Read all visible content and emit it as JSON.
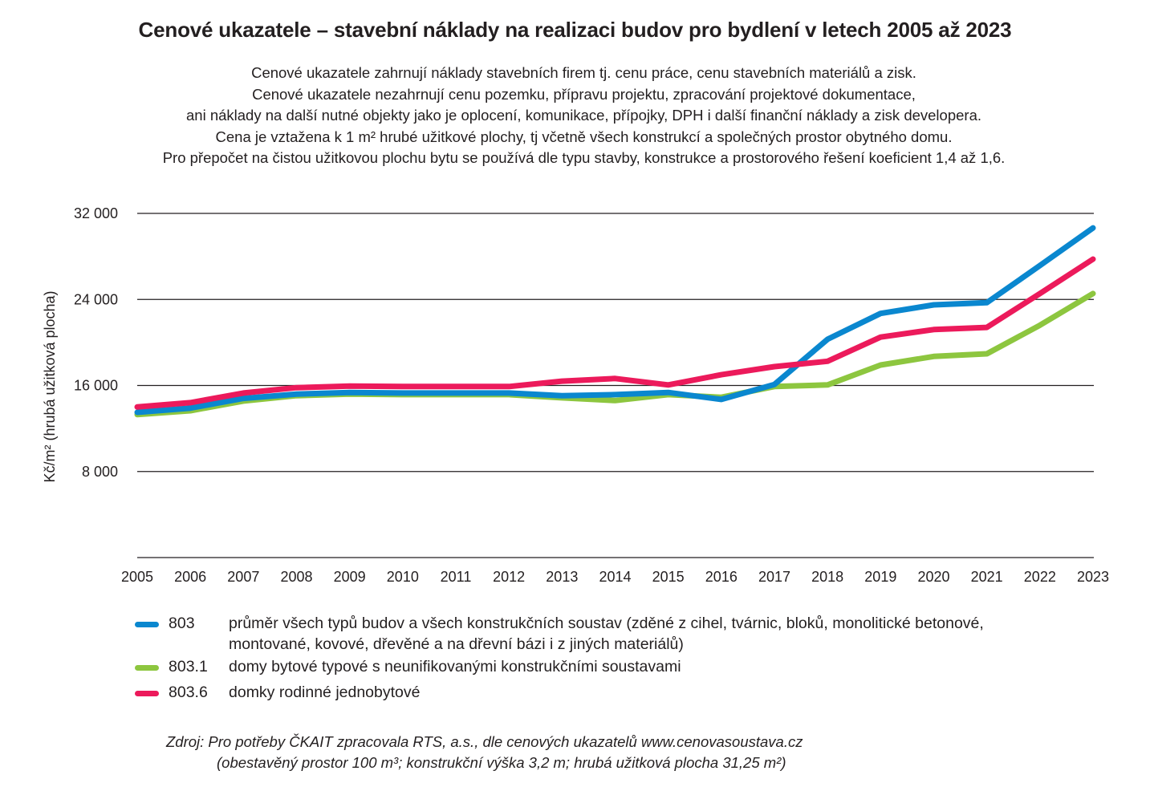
{
  "title": "Cenové ukazatele – stavební náklady na realizaci budov pro bydlení v letech 2005 až 2023",
  "subtitle_lines": [
    "Cenové ukazatele zahrnují náklady stavebních firem tj. cenu práce, cenu stavebních materiálů a zisk.",
    "Cenové ukazatele nezahrnují cenu pozemku, přípravu projektu, zpracování projektové dokumentace,",
    "ani náklady na další nutné objekty jako je oplocení, komunikace, přípojky, DPH i další finanční náklady a zisk developera.",
    "Cena je vztažena k 1 m² hrubé užitkové plochy, tj včetně všech konstrukcí a společných prostor obytného domu.",
    "Pro přepočet na čistou užitkovou plochu bytu se používá dle typu stavby, konstrukce a prostorového řešení koeficient 1,4 až 1,6."
  ],
  "source": {
    "line1": "Zdroj: Pro potřeby ČKAIT zpracovala RTS, a.s., dle cenových ukazatelů www.cenovasoustava.cz",
    "line2": "(obestavěný prostor 100 m³; konstrukční výška 3,2 m; hrubá užitková plocha 31,25 m²)"
  },
  "chart_data": {
    "type": "line",
    "title": "Cenové ukazatele – stavební náklady na realizaci budov pro bydlení v letech 2005 až 2023",
    "xlabel": "",
    "ylabel": "Kč/m² (hrubá užitková plocha)",
    "x": [
      "2005",
      "2006",
      "2007",
      "2008",
      "2009",
      "2010",
      "2011",
      "2012",
      "2013",
      "2014",
      "2015",
      "2016",
      "2017",
      "2018",
      "2019",
      "2020",
      "2021",
      "2022",
      "2023"
    ],
    "ylim": [
      0,
      32000
    ],
    "yticks": [
      8000,
      16000,
      24000,
      32000
    ],
    "ytick_labels": [
      "8 000",
      "16 000",
      "24 000",
      "32 000"
    ],
    "grid": "horizontal",
    "legend_position": "bottom",
    "series": [
      {
        "name": "803",
        "description_lines": [
          "průměr všech typů budov a všech konstrukčních soustav (zděné z cihel, tvárnic, bloků, monolitické betonové,",
          "montované, kovové, dřevěné a na dřevní bázi i z jiných materiálů)"
        ],
        "color": "#0a87cf",
        "values": [
          13500,
          13900,
          14800,
          15200,
          15350,
          15300,
          15300,
          15300,
          15050,
          15150,
          15350,
          14700,
          16100,
          20300,
          22700,
          23500,
          23700,
          27150,
          30650
        ]
      },
      {
        "name": "803.1",
        "description_lines": [
          "domy bytové typové s neunifikovanými konstrukčními soustavami"
        ],
        "color": "#8dc63f",
        "values": [
          13300,
          13650,
          14550,
          15050,
          15200,
          15150,
          15150,
          15150,
          14850,
          14600,
          15150,
          14900,
          15900,
          16050,
          17900,
          18700,
          18950,
          21600,
          24550
        ]
      },
      {
        "name": "803.6",
        "description_lines": [
          "domky rodinné jednobytové"
        ],
        "color": "#ec1a5b",
        "values": [
          14000,
          14400,
          15300,
          15800,
          15950,
          15900,
          15900,
          15900,
          16400,
          16650,
          16050,
          17000,
          17750,
          18250,
          20500,
          21200,
          21400,
          24550,
          27750
        ]
      }
    ]
  }
}
